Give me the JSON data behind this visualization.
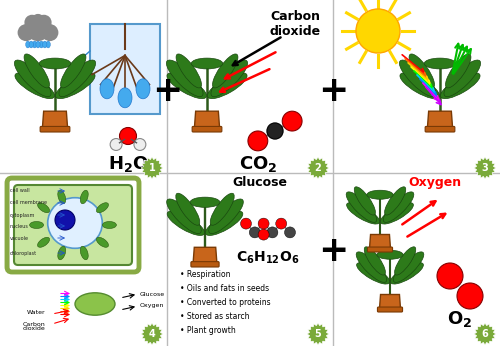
{
  "bg_color": "#ffffff",
  "grid_line_color": "#bbbbbb",
  "badge_color": "#7aaa3a",
  "badge_text_color": "#ffffff",
  "panel_labels": [
    "1",
    "2",
    "3",
    "4",
    "5",
    "6"
  ],
  "cell_labels": [
    "cell wall",
    "cell membrane",
    "cytoplasm",
    "nucleus",
    "vacuole",
    "chloroplast"
  ],
  "photo_labels": [
    "Water",
    "Carbon\ndioxide",
    "Glucose",
    "Oxygen"
  ],
  "panel5_bullets": [
    "Respiration",
    "Oils and fats in seeds",
    "Converted to proteins",
    "Stored as starch",
    "Plant growth"
  ],
  "sun_ray_colors": [
    "#FFD700",
    "#FFCC00",
    "#FF8800",
    "#FF4400",
    "#FF2200",
    "#FF00FF",
    "#CC00FF",
    "#8800FF",
    "#0000FF",
    "#0088FF",
    "#00CCFF",
    "#00FF88"
  ],
  "light_in_colors": [
    "#FF0000",
    "#FF6600",
    "#FFCC00",
    "#FFFF00",
    "#00FF00",
    "#00CCFF",
    "#0088FF",
    "#FF00FF"
  ],
  "light_out_colors": [
    "#00CC00",
    "#00CC00",
    "#00CC00",
    "#00CC00"
  ],
  "co2_arrow_colors": [
    "#FF0000",
    "#FF0000",
    "#000000"
  ]
}
